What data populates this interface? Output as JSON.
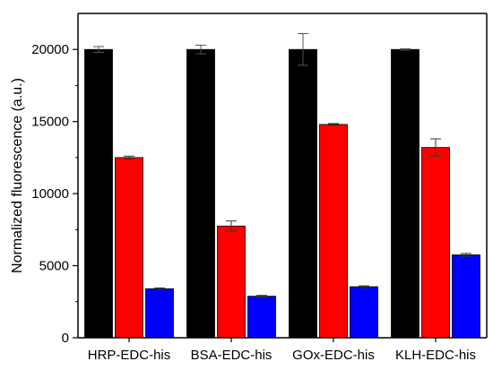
{
  "chart_data": {
    "type": "bar",
    "title": "",
    "xlabel": "",
    "ylabel": "Normalized fluorescence (a.u.)",
    "ylim": [
      0,
      22500
    ],
    "yticks": [
      0,
      5000,
      10000,
      15000,
      20000
    ],
    "yticks_label": [
      "0",
      "5000",
      "10000",
      "15000",
      "20000"
    ],
    "categories": [
      "HRP-EDC-his",
      "BSA-EDC-his",
      "GOx-EDC-his",
      "KLH-EDC-his"
    ],
    "grid": false,
    "legend": "none",
    "series": [
      {
        "color": "#000000",
        "values": [
          20000,
          20000,
          20000,
          20000
        ],
        "errors": [
          200,
          300,
          1100,
          50
        ]
      },
      {
        "color": "#ff0000",
        "values": [
          12500,
          7750,
          14800,
          13200
        ],
        "errors": [
          100,
          350,
          60,
          600
        ]
      },
      {
        "color": "#0000ff",
        "values": [
          3400,
          2880,
          3540,
          5750
        ],
        "errors": [
          60,
          60,
          60,
          100
        ]
      }
    ]
  }
}
